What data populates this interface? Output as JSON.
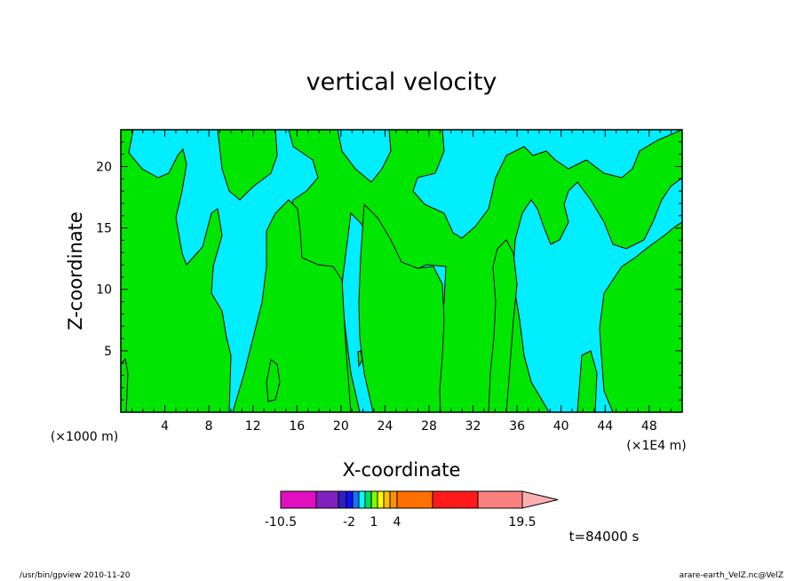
{
  "chart_data": {
    "type": "heatmap",
    "title": "vertical velocity",
    "xlabel": "X-coordinate",
    "ylabel": "Z-coordinate",
    "x_unit_left": "(×1000 m)",
    "x_unit_right": "(×1E4 m)",
    "xlim": [
      0,
      51
    ],
    "ylim": [
      0,
      23
    ],
    "x_ticks": [
      4,
      8,
      12,
      16,
      20,
      24,
      28,
      32,
      36,
      40,
      44,
      48
    ],
    "y_ticks": [
      5,
      10,
      15,
      20
    ],
    "colorbar": {
      "levels": [
        "-10.5",
        "-2",
        "1",
        "4",
        "19.5"
      ],
      "colors": [
        "#e010c0",
        "#8020c0",
        "#3020c0",
        "#1010ff",
        "#1a70ff",
        "#00ffff",
        "#00e060",
        "#80ff00",
        "#ffff00",
        "#ffc000",
        "#ff9000",
        "#ff7000",
        "#ff1a1a",
        "#fa8080",
        "#fab0b0"
      ]
    },
    "colors": {
      "negative_region": "#00eeff",
      "positive_region": "#00e600"
    },
    "time_label": "t=84000 s"
  },
  "footer": {
    "left": "/usr/bin/gpview   2010-11-20",
    "right": "arare-earth_VelZ.nc@VelZ"
  }
}
